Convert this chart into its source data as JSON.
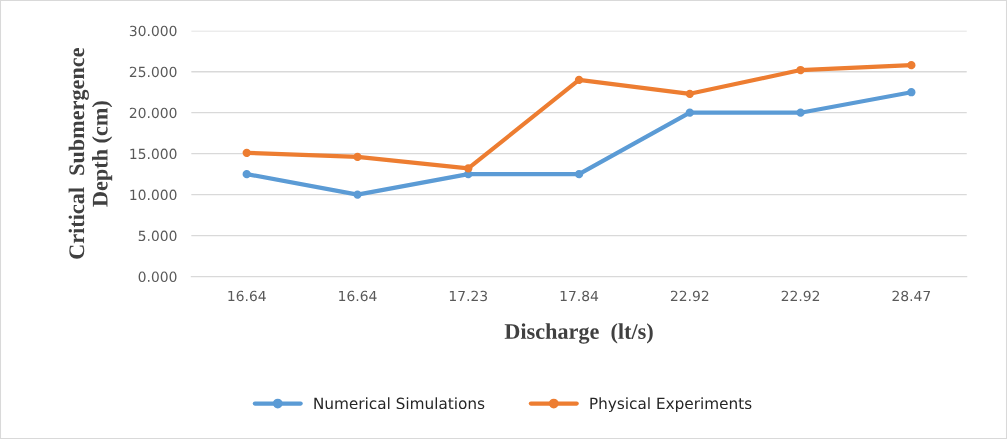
{
  "chart_data": {
    "type": "line",
    "xlabel": "Discharge  (lt/s)",
    "ylabel": "Critical  Submergence\nDepth (cm)",
    "categories": [
      "16.64",
      "16.64",
      "17.23",
      "17.84",
      "22.92",
      "22.92",
      "28.47"
    ],
    "series": [
      {
        "name": "Numerical Simulations",
        "color": "#5b9bd5",
        "values": [
          12.5,
          10,
          12.5,
          12.5,
          20,
          20,
          22.5
        ]
      },
      {
        "name": "Physical Experiments",
        "color": "#ed7d31",
        "values": [
          15.1,
          14.6,
          13.2,
          24,
          22.3,
          25.2,
          25.8
        ]
      }
    ],
    "ylim": [
      0,
      30
    ],
    "yticks": [
      {
        "value": 0,
        "label": "0.000"
      },
      {
        "value": 5,
        "label": "5.000"
      },
      {
        "value": 10,
        "label": "10.000"
      },
      {
        "value": 15,
        "label": "15.000"
      },
      {
        "value": 20,
        "label": "20.000"
      },
      {
        "value": 25,
        "label": "25.000"
      },
      {
        "value": 30,
        "label": "30.000"
      }
    ],
    "grid": "y",
    "legend": "bottom",
    "marker": "circle",
    "line_style": "solid"
  }
}
